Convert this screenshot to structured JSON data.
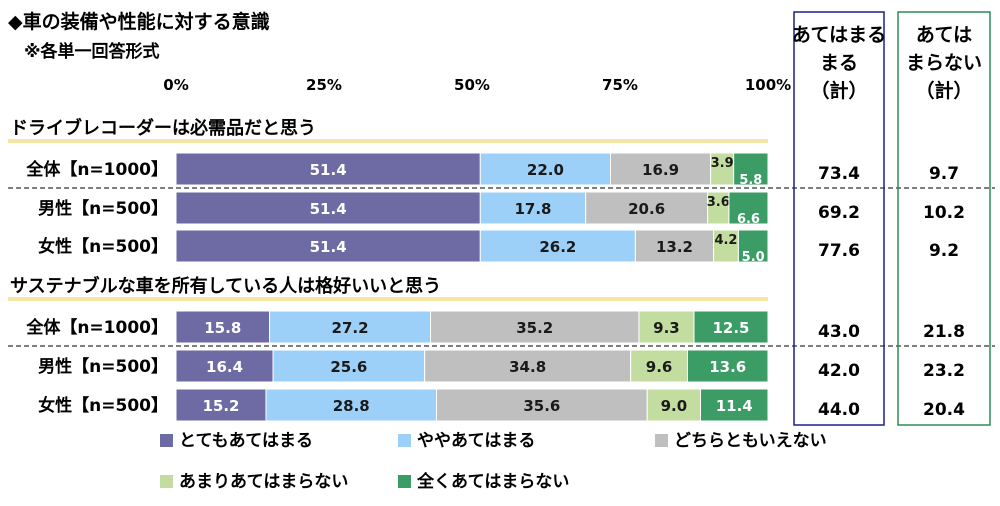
{
  "chart_data": {
    "type": "bar",
    "stacked": true,
    "orientation": "horizontal",
    "title": "◆車の装備や性能に対する意識",
    "subtitle": "※各単一回答形式",
    "x_ticks": [
      "0%",
      "25%",
      "50%",
      "75%",
      "100%"
    ],
    "xlim": [
      0,
      100
    ],
    "legend_position": "bottom",
    "legend": [
      "とてもあてはまる",
      "ややあてはまる",
      "どちらともいえない",
      "あまりあてはまらない",
      "全くあてはまらない"
    ],
    "colors": [
      "#6E6AA3",
      "#9DD0F8",
      "#BFBFBF",
      "#C3DDA1",
      "#3C9C66"
    ],
    "summary_headers": {
      "agree": [
        "あてはまる",
        "まる",
        "（計）"
      ],
      "disagree": [
        "あては",
        "まらない",
        "（計）"
      ],
      "agree_text": "あてはまる（計）",
      "disagree_text": "あてはまらない（計）"
    },
    "summary_colors": {
      "agree": "#1F1F8C",
      "disagree": "#2E8B57"
    },
    "groups": [
      {
        "title": "ドライブレコーダーは必需品だと思う",
        "rows": [
          {
            "label": "全体【n=1000】",
            "values": [
              51.4,
              22.0,
              16.9,
              3.9,
              5.8
            ],
            "agree_total": "73.4",
            "disagree_total": "9.7"
          },
          {
            "label": "男性【n=500】",
            "values": [
              51.4,
              17.8,
              20.6,
              3.6,
              6.6
            ],
            "agree_total": "69.2",
            "disagree_total": "10.2"
          },
          {
            "label": "女性【n=500】",
            "values": [
              51.4,
              26.2,
              13.2,
              4.2,
              5.0
            ],
            "agree_total": "77.6",
            "disagree_total": "9.2"
          }
        ]
      },
      {
        "title": "サステナブルな車を所有している人は格好いいと思う",
        "rows": [
          {
            "label": "全体【n=1000】",
            "values": [
              15.8,
              27.2,
              35.2,
              9.3,
              12.5
            ],
            "agree_total": "43.0",
            "disagree_total": "21.8"
          },
          {
            "label": "男性【n=500】",
            "values": [
              16.4,
              25.6,
              34.8,
              9.6,
              13.6
            ],
            "agree_total": "42.0",
            "disagree_total": "23.2"
          },
          {
            "label": "女性【n=500】",
            "values": [
              15.2,
              28.8,
              35.6,
              9.0,
              11.4
            ],
            "agree_total": "44.0",
            "disagree_total": "20.4"
          }
        ]
      }
    ]
  }
}
